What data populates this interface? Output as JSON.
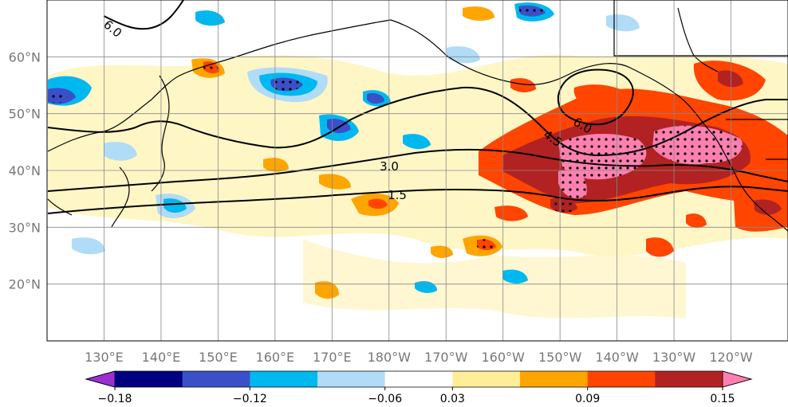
{
  "map": {
    "projection": "cylindrical",
    "lon_range": [
      120,
      250
    ],
    "lat_range": [
      10,
      70
    ],
    "lon_ticks": [
      {
        "value": 130,
        "label": "130°E"
      },
      {
        "value": 140,
        "label": "140°E"
      },
      {
        "value": 150,
        "label": "150°E"
      },
      {
        "value": 160,
        "label": "160°E"
      },
      {
        "value": 170,
        "label": "170°E"
      },
      {
        "value": 180,
        "label": "180°W"
      },
      {
        "value": 190,
        "label": "170°W"
      },
      {
        "value": 200,
        "label": "160°W"
      },
      {
        "value": 210,
        "label": "150°W"
      },
      {
        "value": 220,
        "label": "140°W"
      },
      {
        "value": 230,
        "label": "130°W"
      },
      {
        "value": 240,
        "label": "120°W"
      }
    ],
    "lat_ticks": [
      {
        "value": 20,
        "label": "20°N"
      },
      {
        "value": 30,
        "label": "30°N"
      },
      {
        "value": 40,
        "label": "40°N"
      },
      {
        "value": 50,
        "label": "50°N"
      },
      {
        "value": 60,
        "label": "60°N"
      }
    ],
    "grid": true,
    "contours": [
      {
        "level": "1.5",
        "label": "1.5"
      },
      {
        "level": "3.0",
        "label": "3.0"
      },
      {
        "level": "4.5",
        "label": "4.5"
      },
      {
        "level": "6.0",
        "label": "6.0"
      }
    ],
    "stippling": "significant regions"
  },
  "colorbar": {
    "levels": [
      -0.21,
      -0.18,
      -0.15,
      -0.12,
      -0.09,
      -0.06,
      -0.03,
      0.03,
      0.06,
      0.09,
      0.12,
      0.15,
      0.18
    ],
    "colors": [
      "#9b30d0",
      "#000080",
      "#3a50c8",
      "#00b8f0",
      "#b0dcf8",
      "#ffffff",
      "#ffee98",
      "#ffa500",
      "#ff4500",
      "#b22222",
      "#ff80b0"
    ],
    "extend": "both",
    "labels": [
      "−0.18",
      "−0.12",
      "−0.06",
      "0.03",
      "0.09",
      "0.15"
    ],
    "label_values": [
      -0.18,
      -0.12,
      -0.06,
      0.03,
      0.09,
      0.15
    ]
  }
}
